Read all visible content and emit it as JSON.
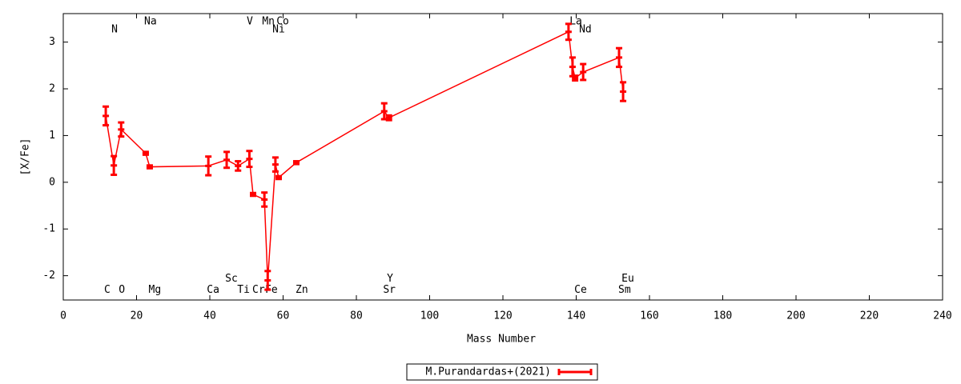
{
  "chart_data": {
    "type": "line",
    "xlabel": "Mass Number",
    "ylabel": "[X/Fe]",
    "xlim": [
      0,
      240
    ],
    "ylim": [
      -2.52,
      3.61
    ],
    "xticks": [
      0,
      20,
      40,
      60,
      80,
      100,
      120,
      140,
      160,
      180,
      200,
      220,
      240
    ],
    "yticks": [
      -2,
      -1,
      0,
      1,
      2,
      3
    ],
    "legend": "bottom",
    "series": [
      {
        "name": "M.Purandardas+(2021)",
        "color": "#ff0000",
        "x": [
          11.6,
          13.8,
          15.8,
          22.5,
          23.6,
          39.6,
          44.6,
          47.7,
          50.8,
          51.8,
          54.9,
          55.8,
          57.9,
          58.8,
          63.6,
          87.6,
          88.9,
          137.9,
          139,
          139.7,
          141.9,
          151.7,
          152.8
        ],
        "values": [
          1.42,
          0.36,
          1.13,
          0.62,
          0.33,
          0.35,
          0.48,
          0.35,
          0.5,
          -0.26,
          -0.37,
          -2.1,
          0.38,
          0.1,
          0.42,
          1.52,
          1.38,
          3.22,
          2.47,
          2.23,
          2.36,
          2.67,
          1.94
        ],
        "errors": [
          0.2,
          0.2,
          0.15,
          0.03,
          0.03,
          0.2,
          0.17,
          0.1,
          0.17,
          0.03,
          0.15,
          0.2,
          0.15,
          0.03,
          0.03,
          0.17,
          0.05,
          0.17,
          0.2,
          0.05,
          0.17,
          0.2,
          0.2
        ]
      }
    ],
    "annotations": [
      {
        "text": "N",
        "x": 14,
        "y": 3.27
      },
      {
        "text": "Na",
        "x": 23.8,
        "y": 3.44
      },
      {
        "text": "V",
        "x": 50.9,
        "y": 3.44
      },
      {
        "text": "Mn",
        "x": 56,
        "y": 3.44
      },
      {
        "text": "Co",
        "x": 59.9,
        "y": 3.44
      },
      {
        "text": "Ni",
        "x": 58.8,
        "y": 3.27
      },
      {
        "text": "La",
        "x": 139.9,
        "y": 3.44
      },
      {
        "text": "Nd",
        "x": 142.5,
        "y": 3.27
      },
      {
        "text": "C",
        "x": 12,
        "y": -2.31
      },
      {
        "text": "O",
        "x": 16,
        "y": -2.31
      },
      {
        "text": "Mg",
        "x": 25,
        "y": -2.31
      },
      {
        "text": "Ca",
        "x": 40.9,
        "y": -2.31
      },
      {
        "text": "Sc",
        "x": 45.9,
        "y": -2.07
      },
      {
        "text": "Ti",
        "x": 49.2,
        "y": -2.31
      },
      {
        "text": "Cr",
        "x": 53.3,
        "y": -2.31
      },
      {
        "text": "Fe",
        "x": 56.8,
        "y": -2.31
      },
      {
        "text": "Zn",
        "x": 65.1,
        "y": -2.31
      },
      {
        "text": "Y",
        "x": 89.2,
        "y": -2.07
      },
      {
        "text": "Sr",
        "x": 89,
        "y": -2.31
      },
      {
        "text": "Ce",
        "x": 141.2,
        "y": -2.31
      },
      {
        "text": "Eu",
        "x": 154.1,
        "y": -2.07
      },
      {
        "text": "Sm",
        "x": 153.2,
        "y": -2.31
      }
    ]
  }
}
